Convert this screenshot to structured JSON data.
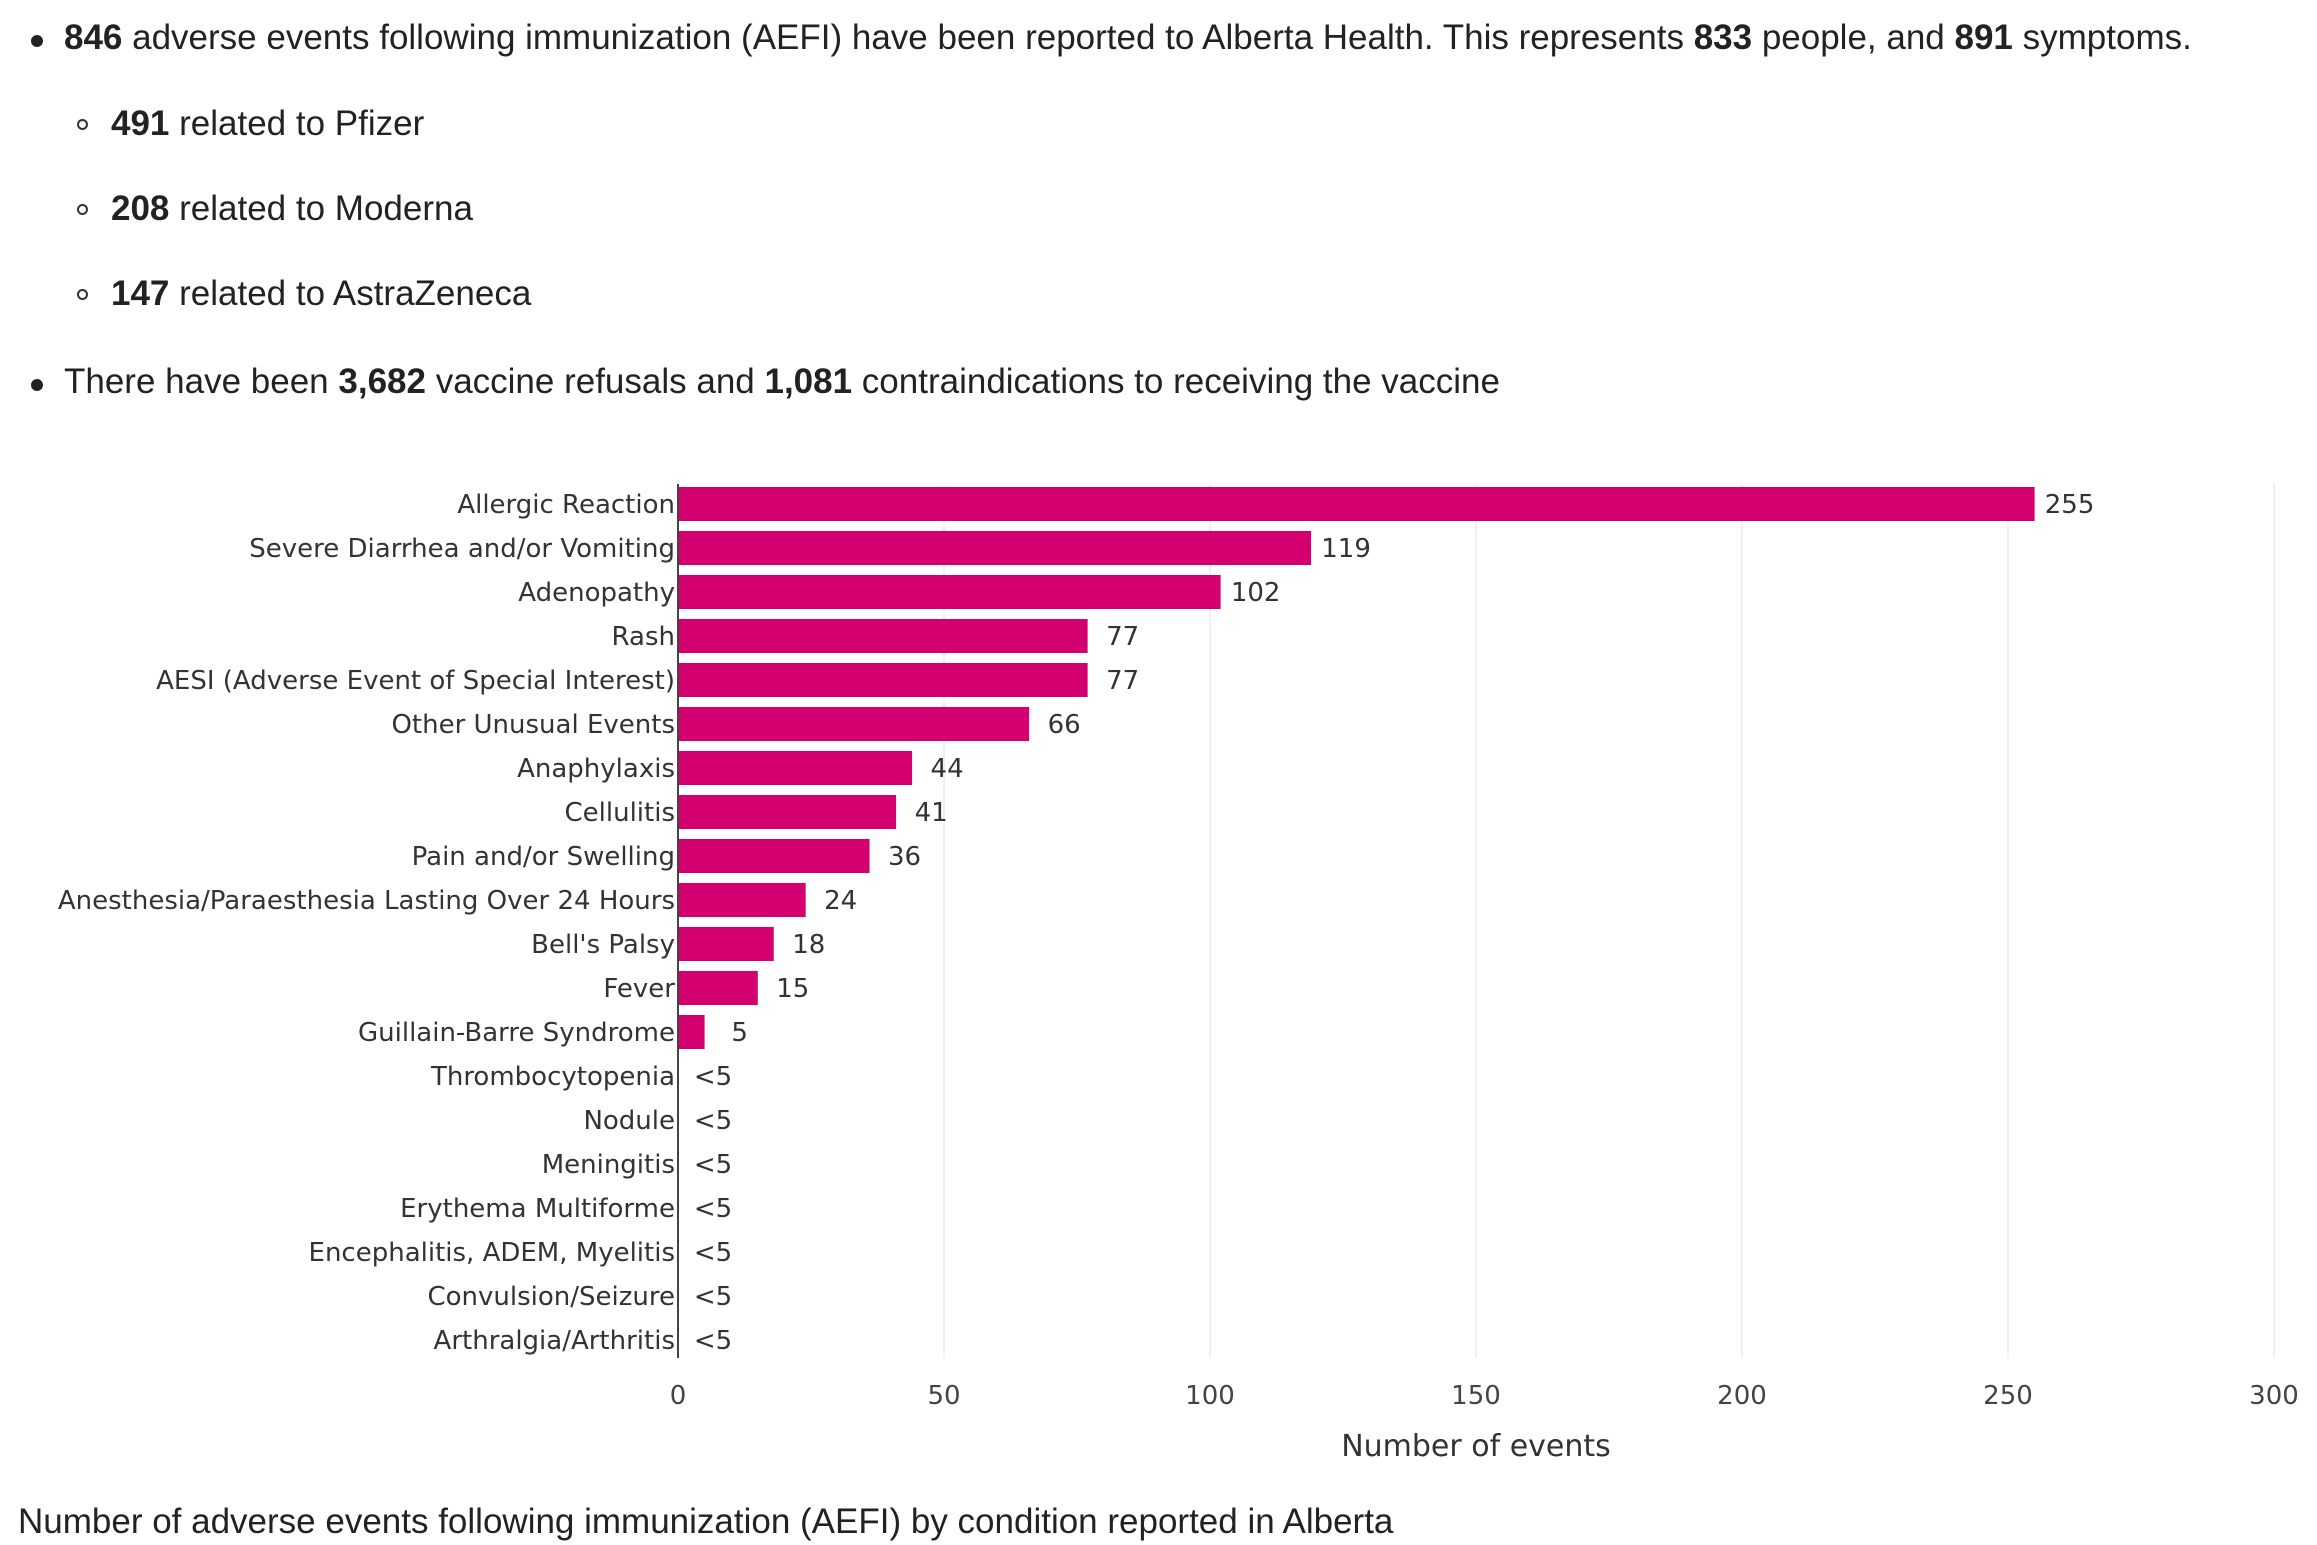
{
  "summary": {
    "line1": {
      "events": "846",
      "text_a": " adverse events following immunization (AEFI) have been reported to Alberta Health. This represents ",
      "people": "833",
      "text_b": " people, and ",
      "symptoms": "891",
      "text_c": " symptoms."
    },
    "vaccines": [
      {
        "count": "491",
        "text": " related to Pfizer"
      },
      {
        "count": "208",
        "text": " related to Moderna"
      },
      {
        "count": "147",
        "text": " related to AstraZeneca"
      }
    ],
    "line2": {
      "text_a": "There have been ",
      "refusals": "3,682",
      "text_b": " vaccine refusals and ",
      "contraindications": "1,081",
      "text_c": " contraindications to receiving the vaccine"
    }
  },
  "chart_data": {
    "type": "bar",
    "orientation": "horizontal",
    "categories": [
      "Allergic Reaction",
      "Severe Diarrhea and/or Vomiting",
      "Adenopathy",
      "Rash",
      "AESI (Adverse Event of Special Interest)",
      "Other Unusual Events",
      "Anaphylaxis",
      "Cellulitis",
      "Pain and/or Swelling",
      "Anesthesia/Paraesthesia Lasting Over 24 Hours",
      "Bell's Palsy",
      "Fever",
      "Guillain-Barre Syndrome",
      "Thrombocytopenia",
      "Nodule",
      "Meningitis",
      "Erythema Multiforme",
      "Encephalitis, ADEM, Myelitis",
      "Convulsion/Seizure",
      "Arthralgia/Arthritis"
    ],
    "values": [
      255,
      119,
      102,
      77,
      77,
      66,
      44,
      41,
      36,
      24,
      18,
      15,
      5,
      null,
      null,
      null,
      null,
      null,
      null,
      null
    ],
    "value_labels": [
      "255",
      "119",
      "102",
      "77",
      "77",
      "66",
      "44",
      "41",
      "36",
      "24",
      "18",
      "15",
      "5",
      "<5",
      "<5",
      "<5",
      "<5",
      "<5",
      "<5",
      "<5"
    ],
    "xlabel": "Number of events",
    "xlim": [
      0,
      300
    ],
    "xticks": [
      0,
      50,
      100,
      150,
      200,
      250,
      300
    ],
    "grid": true,
    "bar_color": "#d4006f"
  },
  "caption": "Number of adverse events following immunization (AEFI) by condition reported in Alberta"
}
